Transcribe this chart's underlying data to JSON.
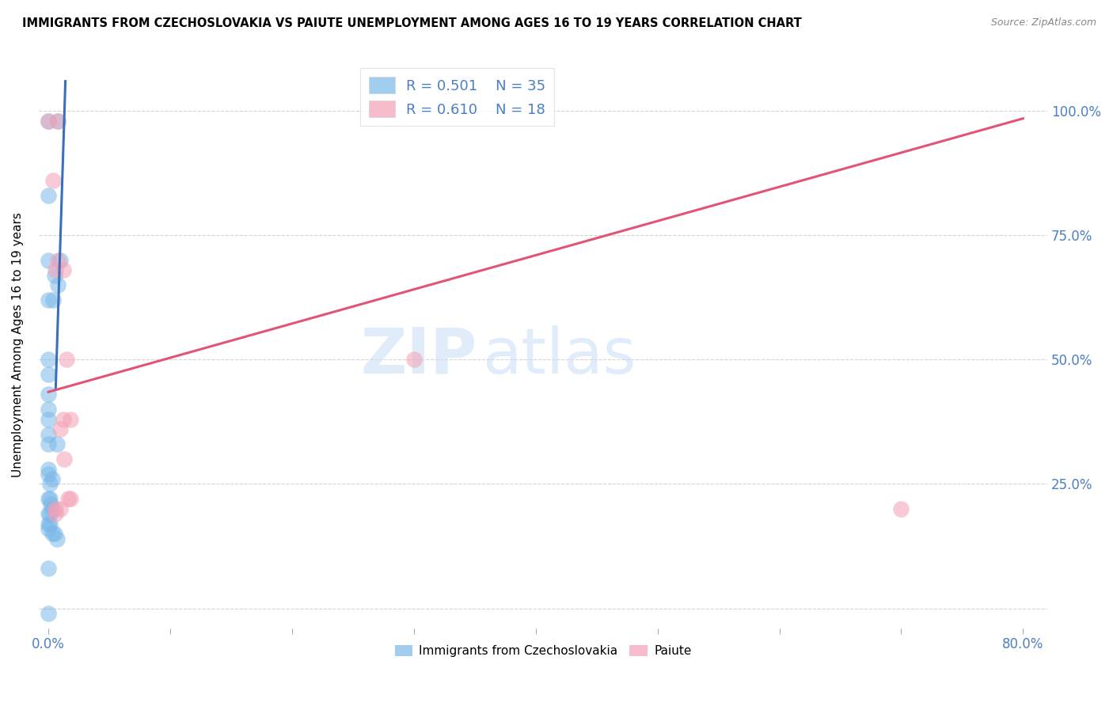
{
  "title": "IMMIGRANTS FROM CZECHOSLOVAKIA VS PAIUTE UNEMPLOYMENT AMONG AGES 16 TO 19 YEARS CORRELATION CHART",
  "source": "Source: ZipAtlas.com",
  "xlabel_bottom": [
    "Immigrants from Czechoslovakia",
    "Paiute"
  ],
  "ylabel": "Unemployment Among Ages 16 to 19 years",
  "x_tick_positions": [
    0.0,
    0.1,
    0.2,
    0.3,
    0.4,
    0.5,
    0.6,
    0.7,
    0.8
  ],
  "x_tick_labels": [
    "0.0%",
    "",
    "",
    "",
    "",
    "",
    "",
    "",
    "80.0%"
  ],
  "y_tick_positions": [
    0.0,
    0.25,
    0.5,
    0.75,
    1.0
  ],
  "y_tick_labels_right": [
    "",
    "25.0%",
    "50.0%",
    "75.0%",
    "100.0%"
  ],
  "blue_R": "R = 0.501",
  "blue_N": "N = 35",
  "pink_R": "R = 0.610",
  "pink_N": "N = 18",
  "blue_color": "#7ab8e8",
  "pink_color": "#f4a0b5",
  "blue_line_color": "#3a6fba",
  "pink_line_color": "#e05575",
  "blue_scatter": [
    [
      0.0,
      0.98
    ],
    [
      0.008,
      0.98
    ],
    [
      0.0,
      0.83
    ],
    [
      0.0,
      0.7
    ],
    [
      0.01,
      0.7
    ],
    [
      0.005,
      0.67
    ],
    [
      0.008,
      0.65
    ],
    [
      0.0,
      0.62
    ],
    [
      0.004,
      0.62
    ],
    [
      0.0,
      0.5
    ],
    [
      0.0,
      0.47
    ],
    [
      0.0,
      0.43
    ],
    [
      0.0,
      0.4
    ],
    [
      0.0,
      0.38
    ],
    [
      0.0,
      0.35
    ],
    [
      0.0,
      0.33
    ],
    [
      0.007,
      0.33
    ],
    [
      0.0,
      0.28
    ],
    [
      0.0,
      0.27
    ],
    [
      0.003,
      0.26
    ],
    [
      0.001,
      0.25
    ],
    [
      0.0,
      0.22
    ],
    [
      0.001,
      0.22
    ],
    [
      0.002,
      0.21
    ],
    [
      0.003,
      0.2
    ],
    [
      0.0,
      0.19
    ],
    [
      0.001,
      0.19
    ],
    [
      0.0,
      0.17
    ],
    [
      0.001,
      0.17
    ],
    [
      0.0,
      0.16
    ],
    [
      0.003,
      0.15
    ],
    [
      0.005,
      0.15
    ],
    [
      0.007,
      0.14
    ],
    [
      0.0,
      0.08
    ],
    [
      0.0,
      -0.01
    ]
  ],
  "pink_scatter": [
    [
      0.0,
      0.98
    ],
    [
      0.008,
      0.98
    ],
    [
      0.004,
      0.86
    ],
    [
      0.008,
      0.7
    ],
    [
      0.006,
      0.68
    ],
    [
      0.012,
      0.68
    ],
    [
      0.015,
      0.5
    ],
    [
      0.3,
      0.5
    ],
    [
      0.012,
      0.38
    ],
    [
      0.018,
      0.38
    ],
    [
      0.01,
      0.36
    ],
    [
      0.013,
      0.3
    ],
    [
      0.016,
      0.22
    ],
    [
      0.018,
      0.22
    ],
    [
      0.006,
      0.2
    ],
    [
      0.01,
      0.2
    ],
    [
      0.7,
      0.2
    ],
    [
      0.006,
      0.19
    ]
  ],
  "blue_line_x": [
    0.006,
    0.014
  ],
  "blue_line_y": [
    0.44,
    1.06
  ],
  "pink_line_x": [
    0.0,
    0.8
  ],
  "pink_line_y": [
    0.435,
    0.985
  ],
  "watermark_zip": "ZIP",
  "watermark_atlas": "atlas",
  "background_color": "#ffffff",
  "grid_color": "#c8c8c8",
  "xlim": [
    -0.008,
    0.82
  ],
  "ylim": [
    -0.04,
    1.1
  ]
}
